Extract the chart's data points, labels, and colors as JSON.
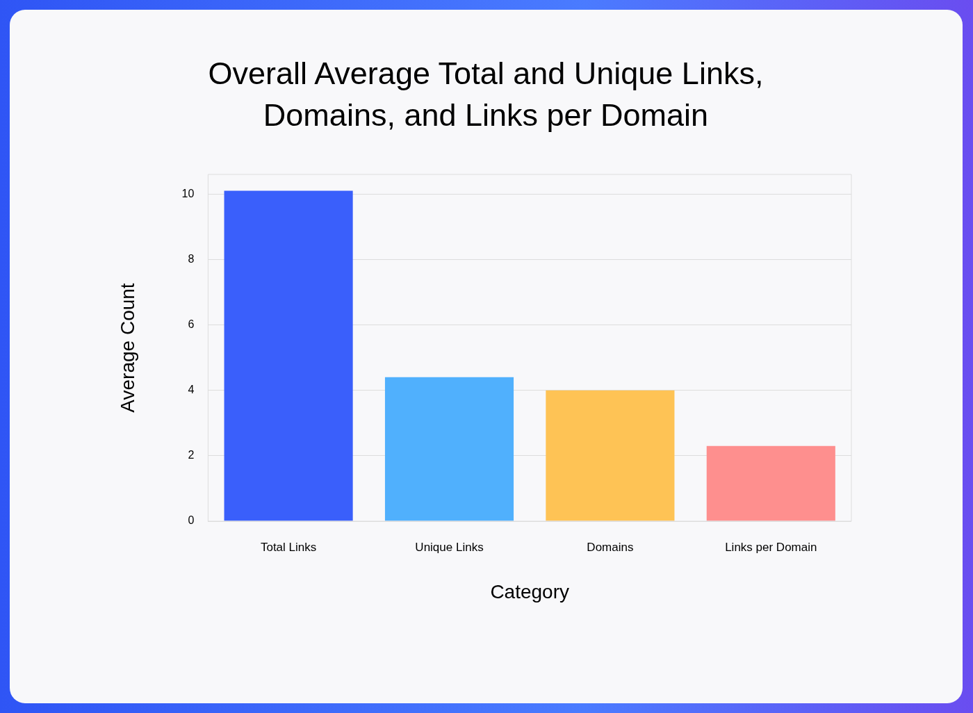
{
  "chart_data": {
    "type": "bar",
    "title": "Overall Average Total and Unique Links, Domains, and Links per Domain",
    "xlabel": "Category",
    "ylabel": "Average Count",
    "categories": [
      "Total Links",
      "Unique Links",
      "Domains",
      "Links per Domain"
    ],
    "values": [
      10.1,
      4.4,
      4.0,
      2.3
    ],
    "colors": [
      "#3a5ffb",
      "#50b0fd",
      "#fec355",
      "#fe8f8e"
    ],
    "ylim": [
      0,
      10.6
    ],
    "yticks": [
      0,
      2,
      4,
      6,
      8,
      10
    ],
    "grid": "y"
  }
}
